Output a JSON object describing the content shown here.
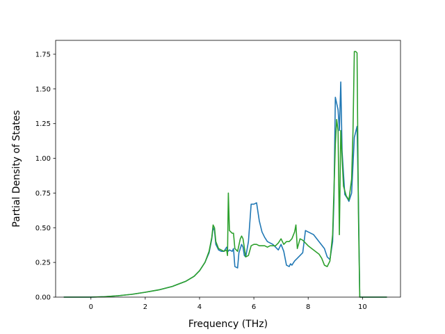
{
  "chart_data": {
    "type": "line",
    "title": "",
    "xlabel": "Frequency (THz)",
    "ylabel": "Partial Density of States",
    "xlim": [
      -1.3,
      11.4
    ],
    "ylim": [
      0,
      1.85
    ],
    "xticks": [
      0,
      2,
      4,
      6,
      8,
      10
    ],
    "xtick_labels": [
      "0",
      "2",
      "4",
      "6",
      "8",
      "10"
    ],
    "yticks": [
      0,
      0.25,
      0.5,
      0.75,
      1.0,
      1.25,
      1.5,
      1.75
    ],
    "ytick_labels": [
      "0.00",
      "0.25",
      "0.50",
      "0.75",
      "1.00",
      "1.25",
      "1.50",
      "1.75"
    ],
    "grid": false,
    "legend": "none",
    "series": [
      {
        "color": "#1f77b4",
        "points": [
          [
            -1.0,
            0
          ],
          [
            0,
            0
          ],
          [
            0.5,
            0.003
          ],
          [
            1.0,
            0.01
          ],
          [
            1.5,
            0.02
          ],
          [
            2.0,
            0.035
          ],
          [
            2.5,
            0.052
          ],
          [
            3.0,
            0.077
          ],
          [
            3.5,
            0.115
          ],
          [
            3.8,
            0.15
          ],
          [
            4.0,
            0.19
          ],
          [
            4.2,
            0.25
          ],
          [
            4.35,
            0.32
          ],
          [
            4.45,
            0.42
          ],
          [
            4.5,
            0.5
          ],
          [
            4.55,
            0.48
          ],
          [
            4.6,
            0.38
          ],
          [
            4.7,
            0.34
          ],
          [
            4.8,
            0.33
          ],
          [
            4.9,
            0.33
          ],
          [
            5.0,
            0.36
          ],
          [
            5.05,
            0.33
          ],
          [
            5.1,
            0.34
          ],
          [
            5.2,
            0.33
          ],
          [
            5.25,
            0.35
          ],
          [
            5.3,
            0.22
          ],
          [
            5.4,
            0.21
          ],
          [
            5.45,
            0.32
          ],
          [
            5.55,
            0.38
          ],
          [
            5.6,
            0.36
          ],
          [
            5.65,
            0.3
          ],
          [
            5.7,
            0.29
          ],
          [
            5.8,
            0.4
          ],
          [
            5.9,
            0.67
          ],
          [
            6.0,
            0.67
          ],
          [
            6.1,
            0.68
          ],
          [
            6.2,
            0.55
          ],
          [
            6.3,
            0.47
          ],
          [
            6.4,
            0.43
          ],
          [
            6.5,
            0.4
          ],
          [
            6.6,
            0.39
          ],
          [
            6.7,
            0.38
          ],
          [
            6.8,
            0.36
          ],
          [
            6.9,
            0.34
          ],
          [
            7.0,
            0.38
          ],
          [
            7.1,
            0.33
          ],
          [
            7.2,
            0.23
          ],
          [
            7.3,
            0.22
          ],
          [
            7.35,
            0.24
          ],
          [
            7.4,
            0.23
          ],
          [
            7.5,
            0.26
          ],
          [
            7.6,
            0.28
          ],
          [
            7.7,
            0.3
          ],
          [
            7.8,
            0.32
          ],
          [
            7.9,
            0.48
          ],
          [
            8.0,
            0.47
          ],
          [
            8.2,
            0.45
          ],
          [
            8.4,
            0.4
          ],
          [
            8.6,
            0.35
          ],
          [
            8.7,
            0.29
          ],
          [
            8.8,
            0.27
          ],
          [
            8.9,
            0.4
          ],
          [
            8.95,
            0.7
          ],
          [
            9.0,
            1.44
          ],
          [
            9.1,
            1.35
          ],
          [
            9.15,
            1.2
          ],
          [
            9.2,
            1.55
          ],
          [
            9.25,
            1.05
          ],
          [
            9.35,
            0.74
          ],
          [
            9.45,
            0.71
          ],
          [
            9.5,
            0.69
          ],
          [
            9.6,
            0.75
          ],
          [
            9.7,
            1.15
          ],
          [
            9.8,
            1.23
          ],
          [
            9.85,
            0.7
          ],
          [
            9.9,
            0
          ],
          [
            10.9,
            0
          ]
        ]
      },
      {
        "color": "#2ca02c",
        "points": [
          [
            -1.0,
            0
          ],
          [
            0,
            0
          ],
          [
            0.5,
            0.003
          ],
          [
            1.0,
            0.01
          ],
          [
            1.5,
            0.02
          ],
          [
            2.0,
            0.035
          ],
          [
            2.5,
            0.052
          ],
          [
            3.0,
            0.077
          ],
          [
            3.5,
            0.115
          ],
          [
            3.8,
            0.15
          ],
          [
            4.0,
            0.19
          ],
          [
            4.2,
            0.25
          ],
          [
            4.35,
            0.33
          ],
          [
            4.45,
            0.43
          ],
          [
            4.5,
            0.52
          ],
          [
            4.55,
            0.5
          ],
          [
            4.6,
            0.4
          ],
          [
            4.7,
            0.35
          ],
          [
            4.8,
            0.34
          ],
          [
            4.9,
            0.33
          ],
          [
            5.0,
            0.34
          ],
          [
            5.03,
            0.3
          ],
          [
            5.06,
            0.75
          ],
          [
            5.1,
            0.48
          ],
          [
            5.2,
            0.46
          ],
          [
            5.25,
            0.46
          ],
          [
            5.3,
            0.35
          ],
          [
            5.4,
            0.33
          ],
          [
            5.5,
            0.42
          ],
          [
            5.55,
            0.44
          ],
          [
            5.6,
            0.42
          ],
          [
            5.7,
            0.29
          ],
          [
            5.8,
            0.3
          ],
          [
            5.9,
            0.37
          ],
          [
            6.0,
            0.38
          ],
          [
            6.1,
            0.38
          ],
          [
            6.2,
            0.37
          ],
          [
            6.4,
            0.37
          ],
          [
            6.5,
            0.36
          ],
          [
            6.6,
            0.37
          ],
          [
            6.7,
            0.37
          ],
          [
            6.8,
            0.37
          ],
          [
            6.9,
            0.39
          ],
          [
            7.0,
            0.42
          ],
          [
            7.1,
            0.38
          ],
          [
            7.2,
            0.4
          ],
          [
            7.3,
            0.4
          ],
          [
            7.4,
            0.42
          ],
          [
            7.5,
            0.47
          ],
          [
            7.55,
            0.52
          ],
          [
            7.6,
            0.35
          ],
          [
            7.7,
            0.42
          ],
          [
            7.8,
            0.41
          ],
          [
            8.0,
            0.37
          ],
          [
            8.2,
            0.34
          ],
          [
            8.4,
            0.31
          ],
          [
            8.5,
            0.28
          ],
          [
            8.6,
            0.23
          ],
          [
            8.7,
            0.22
          ],
          [
            8.8,
            0.26
          ],
          [
            8.9,
            0.45
          ],
          [
            9.0,
            1.1
          ],
          [
            9.05,
            1.28
          ],
          [
            9.1,
            1.2
          ],
          [
            9.15,
            0.45
          ],
          [
            9.2,
            1.2
          ],
          [
            9.3,
            0.8
          ],
          [
            9.4,
            0.73
          ],
          [
            9.5,
            0.7
          ],
          [
            9.6,
            0.85
          ],
          [
            9.65,
            1.2
          ],
          [
            9.7,
            1.77
          ],
          [
            9.75,
            1.77
          ],
          [
            9.8,
            1.76
          ],
          [
            9.85,
            0.6
          ],
          [
            9.9,
            0
          ],
          [
            10.9,
            0
          ]
        ]
      }
    ]
  }
}
